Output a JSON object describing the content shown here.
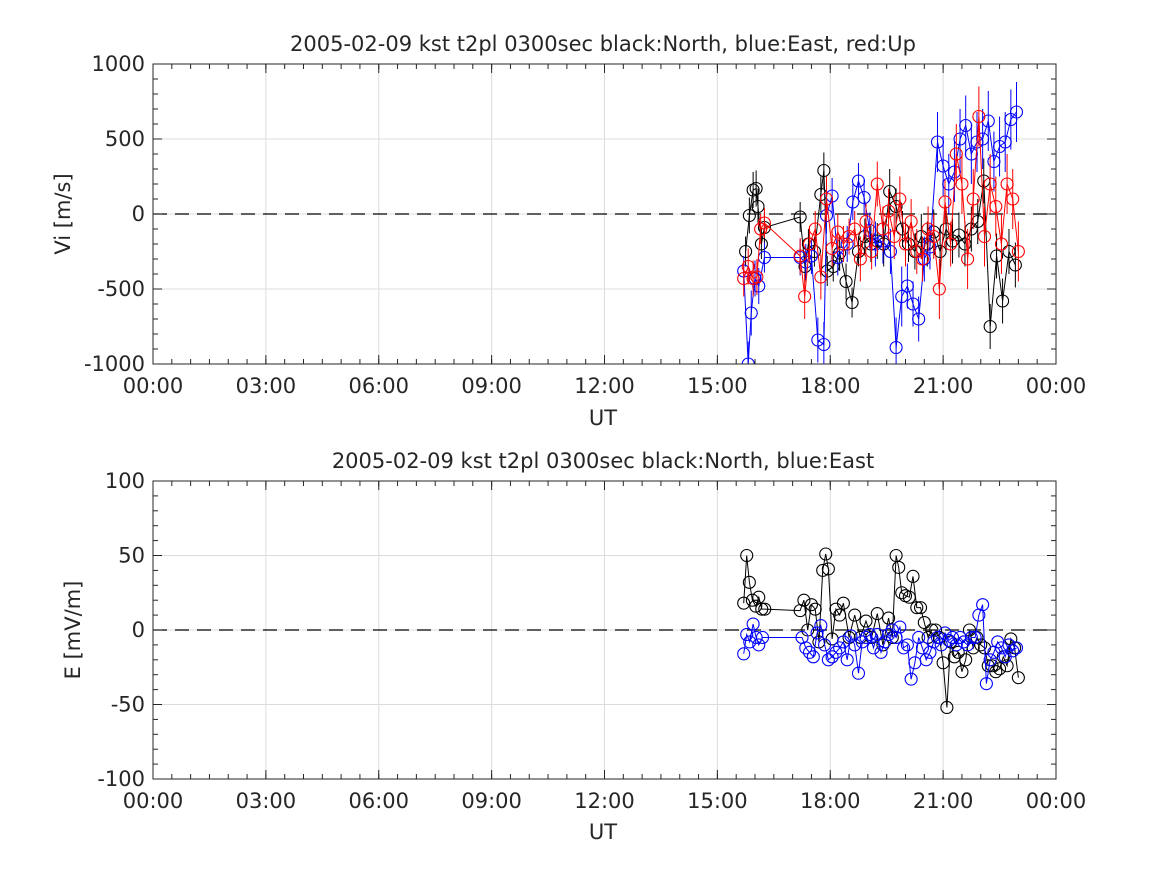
{
  "chart_data": [
    {
      "type": "scatter",
      "title": "2005-02-09 kst t2pl 0300sec black:North, blue:East, red:Up",
      "xlabel": "UT",
      "ylabel": "Vi [m/s]",
      "xlim": [
        0,
        24
      ],
      "ylim": [
        -1000,
        1000
      ],
      "xticks": [
        0,
        3,
        6,
        9,
        12,
        15,
        18,
        21,
        24
      ],
      "xtick_labels": [
        "00:00",
        "03:00",
        "06:00",
        "09:00",
        "12:00",
        "15:00",
        "18:00",
        "21:00",
        "00:00"
      ],
      "yticks": [
        1000,
        500,
        0,
        -500,
        -1000
      ],
      "ytick_labels": [
        "1000",
        "500",
        "0",
        "-500",
        "-1000"
      ],
      "grid": true,
      "zero_line": "dashed",
      "series": [
        {
          "name": "North",
          "color": "#000000",
          "x": [
            15.75,
            15.85,
            15.95,
            16.03,
            16.08,
            16.17,
            16.25,
            17.2,
            17.33,
            17.42,
            17.58,
            17.75,
            17.83,
            17.92,
            18.08,
            18.25,
            18.42,
            18.58,
            18.75,
            18.92,
            19.08,
            19.25,
            19.42,
            19.58,
            19.75,
            19.92,
            20.08,
            20.25,
            20.42,
            20.58,
            20.75,
            20.92,
            21.08,
            21.25,
            21.42,
            21.58,
            21.75,
            21.92,
            22.08,
            22.25,
            22.42,
            22.58,
            22.75,
            22.92
          ],
          "y": [
            -250,
            -10,
            160,
            170,
            50,
            -200,
            -90,
            -20,
            -350,
            -200,
            -250,
            130,
            290,
            -380,
            -350,
            -260,
            -450,
            -590,
            -250,
            -150,
            -200,
            -180,
            -200,
            150,
            50,
            -100,
            -200,
            -250,
            -150,
            -200,
            -120,
            -250,
            -100,
            -180,
            -140,
            -200,
            -100,
            -50,
            220,
            -750,
            -280,
            -580,
            -250,
            -340
          ],
          "err": [
            100,
            120,
            120,
            120,
            120,
            100,
            100,
            100,
            100,
            100,
            100,
            120,
            120,
            100,
            100,
            120,
            120,
            100,
            100,
            120,
            120,
            120,
            150,
            150,
            120,
            120,
            120,
            120,
            150,
            150,
            150,
            150,
            150,
            150,
            150,
            150,
            150,
            150,
            150,
            150,
            150,
            150,
            150,
            150
          ]
        },
        {
          "name": "East",
          "color": "#0000ff",
          "x": [
            15.7,
            15.82,
            15.9,
            16.0,
            16.1,
            16.25,
            17.2,
            17.35,
            17.5,
            17.67,
            17.83,
            17.9,
            18.05,
            18.2,
            18.45,
            18.6,
            18.75,
            18.9,
            19.05,
            19.2,
            19.4,
            19.6,
            19.75,
            19.9,
            20.05,
            20.2,
            20.35,
            20.5,
            20.65,
            20.85,
            21.0,
            21.15,
            21.3,
            21.45,
            21.6,
            21.75,
            21.9,
            22.05,
            22.2,
            22.35,
            22.5,
            22.65,
            22.8,
            22.95
          ],
          "y": [
            -380,
            -1000,
            -660,
            -430,
            -480,
            -290,
            -290,
            -320,
            -280,
            -840,
            -870,
            -10,
            120,
            -290,
            -200,
            80,
            220,
            110,
            -110,
            -200,
            -180,
            -250,
            -890,
            -550,
            -480,
            -600,
            -700,
            -300,
            -220,
            480,
            320,
            200,
            280,
            500,
            590,
            400,
            480,
            500,
            620,
            350,
            450,
            480,
            630,
            680
          ],
          "err": [
            100,
            150,
            150,
            120,
            120,
            100,
            120,
            120,
            120,
            150,
            150,
            120,
            120,
            120,
            120,
            120,
            120,
            120,
            120,
            150,
            150,
            150,
            200,
            200,
            150,
            150,
            150,
            150,
            150,
            200,
            200,
            200,
            200,
            200,
            200,
            200,
            200,
            200,
            200,
            200,
            200,
            200,
            200,
            200
          ]
        },
        {
          "name": "Up",
          "color": "#ff0000",
          "x": [
            15.7,
            15.82,
            15.95,
            16.05,
            16.15,
            16.25,
            17.2,
            17.32,
            17.45,
            17.6,
            17.75,
            17.9,
            18.05,
            18.2,
            18.35,
            18.5,
            18.65,
            18.8,
            18.95,
            19.1,
            19.25,
            19.4,
            19.55,
            19.7,
            19.85,
            20.0,
            20.15,
            20.3,
            20.45,
            20.6,
            20.75,
            20.9,
            21.05,
            21.2,
            21.35,
            21.5,
            21.65,
            21.8,
            21.95,
            22.1,
            22.25,
            22.4,
            22.55,
            22.7,
            22.85,
            23.0
          ],
          "y": [
            -430,
            -350,
            -430,
            -420,
            -100,
            -60,
            -280,
            -550,
            -200,
            -100,
            -420,
            100,
            -230,
            -120,
            -200,
            -150,
            -100,
            -300,
            -50,
            -250,
            200,
            -100,
            20,
            -150,
            100,
            -200,
            -50,
            -250,
            -300,
            -100,
            -150,
            -500,
            80,
            -200,
            400,
            200,
            -300,
            100,
            650,
            -150,
            200,
            50,
            -200,
            200,
            100,
            -250
          ],
          "err": [
            120,
            120,
            120,
            120,
            100,
            100,
            120,
            150,
            120,
            120,
            150,
            150,
            120,
            120,
            120,
            120,
            120,
            150,
            120,
            120,
            150,
            150,
            150,
            150,
            150,
            150,
            150,
            150,
            150,
            150,
            150,
            200,
            150,
            150,
            200,
            200,
            200,
            200,
            200,
            200,
            200,
            200,
            200,
            200,
            200,
            200
          ]
        }
      ]
    },
    {
      "type": "scatter",
      "title": "2005-02-09 kst t2pl 0300sec black:North, blue:East",
      "xlabel": "UT",
      "ylabel": "E [mV/m]",
      "xlim": [
        0,
        24
      ],
      "ylim": [
        -100,
        100
      ],
      "xticks": [
        0,
        3,
        6,
        9,
        12,
        15,
        18,
        21,
        24
      ],
      "xtick_labels": [
        "00:00",
        "03:00",
        "06:00",
        "09:00",
        "12:00",
        "15:00",
        "18:00",
        "21:00",
        "00:00"
      ],
      "yticks": [
        100,
        50,
        0,
        -50,
        -100
      ],
      "ytick_labels": [
        "100",
        "50",
        "0",
        "-50",
        "-100"
      ],
      "grid": true,
      "zero_line": "dashed",
      "series": [
        {
          "name": "North",
          "color": "#000000",
          "x": [
            15.7,
            15.78,
            15.85,
            15.93,
            16.02,
            16.1,
            16.18,
            16.26,
            17.2,
            17.3,
            17.4,
            17.5,
            17.6,
            17.7,
            17.8,
            17.88,
            17.95,
            18.05,
            18.15,
            18.25,
            18.35,
            18.5,
            18.65,
            18.8,
            18.95,
            19.1,
            19.25,
            19.4,
            19.55,
            19.65,
            19.75,
            19.82,
            19.9,
            20.0,
            20.1,
            20.2,
            20.3,
            20.4,
            20.5,
            20.6,
            20.7,
            20.8,
            20.9,
            21.0,
            21.1,
            21.2,
            21.3,
            21.4,
            21.5,
            21.6,
            21.7,
            21.8,
            21.9,
            22.0,
            22.1,
            22.2,
            22.3,
            22.4,
            22.5,
            22.6,
            22.7,
            22.8,
            22.9,
            23.0
          ],
          "y": [
            18,
            50,
            32,
            20,
            16,
            22,
            14,
            14,
            13,
            20,
            0,
            17,
            14,
            -8,
            40,
            51,
            41,
            -6,
            14,
            10,
            18,
            -5,
            10,
            -5,
            6,
            -5,
            11,
            -10,
            8,
            -5,
            50,
            42,
            25,
            23,
            22,
            36,
            15,
            15,
            5,
            -5,
            0,
            0,
            -5,
            -22,
            -52,
            -8,
            -18,
            -15,
            -28,
            -20,
            0,
            -12,
            -5,
            -10,
            -12,
            -24,
            -24,
            -28,
            -26,
            -18,
            -24,
            -6,
            -12,
            -32
          ]
        },
        {
          "name": "East",
          "color": "#0000ff",
          "x": [
            15.7,
            15.78,
            15.86,
            15.95,
            16.03,
            16.1,
            16.2,
            17.25,
            17.35,
            17.45,
            17.55,
            17.65,
            17.75,
            17.85,
            17.95,
            18.05,
            18.15,
            18.25,
            18.35,
            18.45,
            18.55,
            18.65,
            18.75,
            18.85,
            18.95,
            19.05,
            19.15,
            19.25,
            19.35,
            19.45,
            19.55,
            19.65,
            19.75,
            19.85,
            19.95,
            20.05,
            20.15,
            20.25,
            20.35,
            20.45,
            20.55,
            20.65,
            20.75,
            20.85,
            20.95,
            21.05,
            21.15,
            21.25,
            21.35,
            21.45,
            21.55,
            21.65,
            21.75,
            21.85,
            21.95,
            22.05,
            22.15,
            22.25,
            22.35,
            22.45,
            22.55,
            22.65,
            22.75,
            22.85,
            22.95
          ],
          "y": [
            -16,
            -3,
            -8,
            4,
            -5,
            -10,
            -5,
            -5,
            -12,
            -15,
            -18,
            -2,
            3,
            -10,
            -20,
            -18,
            -15,
            -12,
            -8,
            -20,
            -4,
            -10,
            -29,
            -8,
            -5,
            -3,
            -12,
            -3,
            -15,
            -8,
            -3,
            0,
            -5,
            2,
            -12,
            -10,
            -33,
            -22,
            -5,
            -12,
            -20,
            -15,
            -8,
            -5,
            -10,
            -2,
            -7,
            -5,
            -10,
            -5,
            -8,
            -10,
            -5,
            -5,
            10,
            17,
            -36,
            -20,
            -15,
            -8,
            -12,
            -18,
            -10,
            -14,
            -12
          ]
        }
      ]
    }
  ]
}
